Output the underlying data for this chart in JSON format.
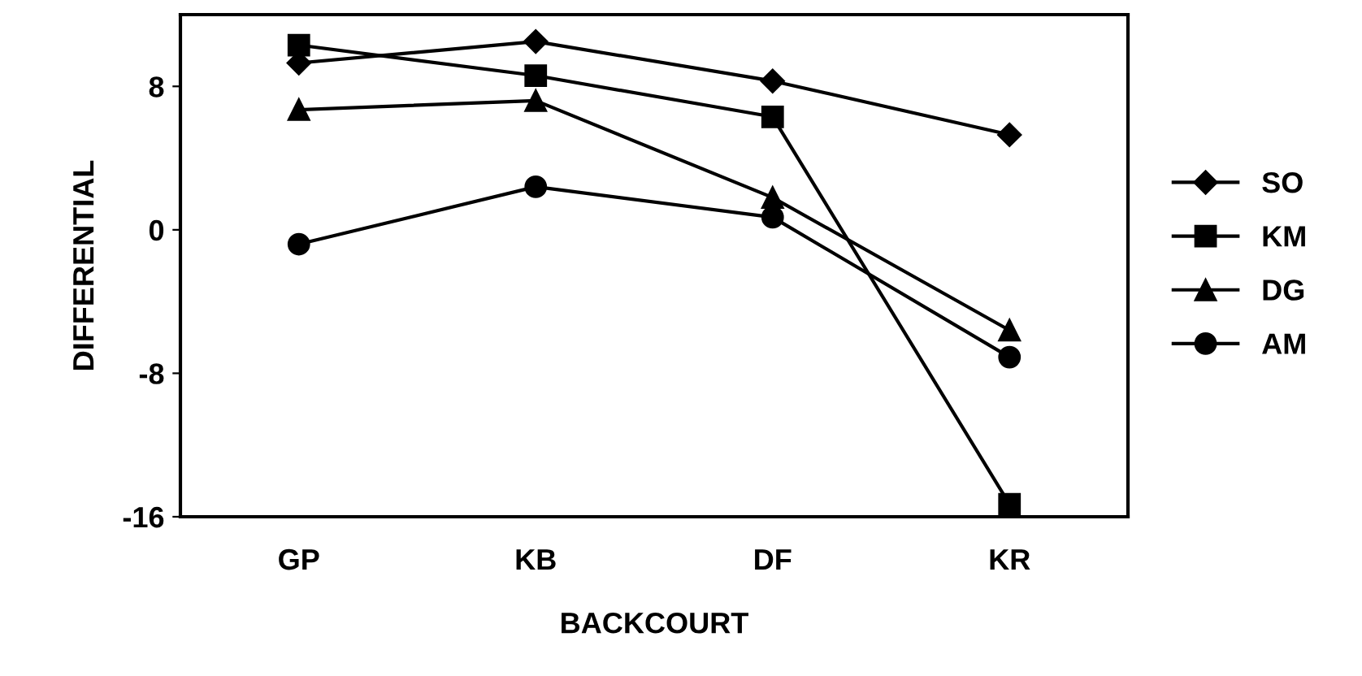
{
  "chart_data": {
    "type": "line",
    "xlabel": "BACKCOURT",
    "ylabel": "DIFFERENTIAL",
    "categories": [
      "GP",
      "KB",
      "DF",
      "KR"
    ],
    "series": [
      {
        "name": "SO",
        "color": "#000000",
        "marker": "diamond",
        "values": [
          9.3,
          10.5,
          8.3,
          5.3
        ]
      },
      {
        "name": "KM",
        "color": "#000000",
        "marker": "square",
        "values": [
          10.3,
          8.6,
          6.3,
          -15.3
        ]
      },
      {
        "name": "DG",
        "color": "#000000",
        "marker": "triangle",
        "values": [
          6.7,
          7.2,
          1.8,
          -5.6
        ]
      },
      {
        "name": "AM",
        "color": "#000000",
        "marker": "circle",
        "values": [
          -0.8,
          2.4,
          0.7,
          -7.1
        ]
      }
    ],
    "ylim": [
      -16,
      12
    ],
    "yticks": [
      -16,
      -8,
      0,
      8
    ],
    "grid": false,
    "legend": "right",
    "line_style": "solid"
  }
}
